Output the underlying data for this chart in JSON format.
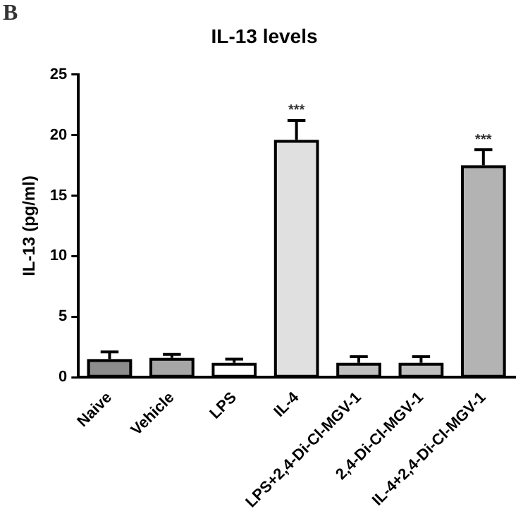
{
  "chart_data": {
    "type": "bar",
    "title": "IL-13 levels",
    "ylabel": "IL-13 (pg/ml)",
    "categories": [
      "Naive",
      "Vehicle",
      "LPS",
      "IL-4",
      "LPS+2,4-Di-Cl-MGV-1",
      "2,4-Di-Cl-MGV-1",
      "IL-4+2,4-Di-Cl-MGV-1"
    ],
    "values": [
      1.5,
      1.6,
      1.2,
      19.6,
      1.2,
      1.2,
      17.5
    ],
    "colors": [
      "#8c8c8c",
      "#a6a6a6",
      "#ffffff",
      "#e0e0e0",
      "#bfbfbf",
      "#bfbfbf",
      "#b3b3b3"
    ],
    "errors": [
      [
        1.5,
        2.1
      ],
      [
        1.6,
        1.9
      ],
      [
        1.2,
        1.5
      ],
      [
        19.6,
        21.2
      ],
      [
        1.2,
        1.7
      ],
      [
        1.2,
        1.7
      ],
      [
        17.5,
        18.8
      ]
    ],
    "ylim": [
      0,
      25
    ],
    "yticks": [
      0,
      5,
      10,
      15,
      20,
      25
    ],
    "grid": false,
    "legend": false,
    "annotations": [
      "B",
      {
        "text": "***",
        "x": "IL-4",
        "y": 21.2
      },
      {
        "text": "***",
        "x": "IL-4+2,4-Di-Cl-MGV-1",
        "y": 18.8
      }
    ]
  }
}
